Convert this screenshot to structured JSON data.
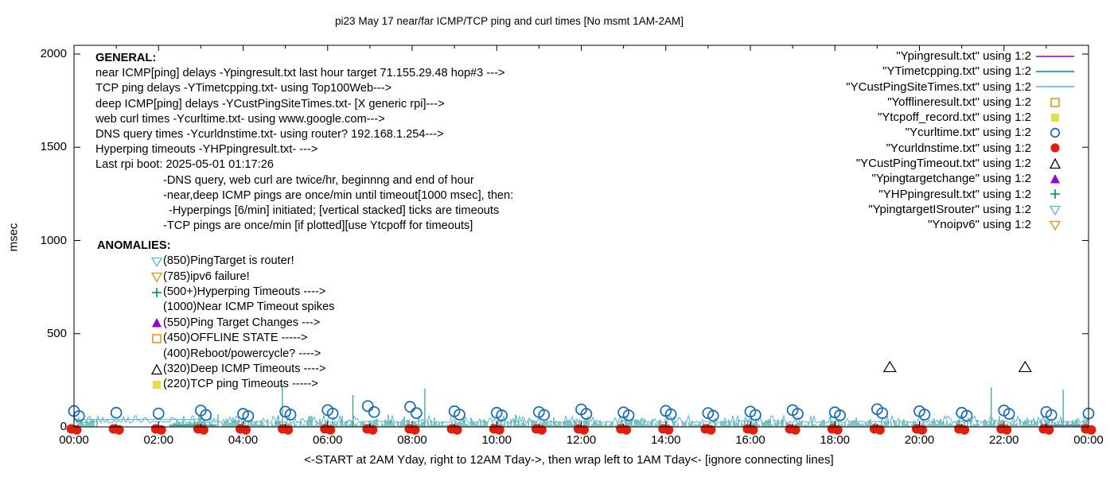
{
  "chart": {
    "title": "pi23 May 17  near/far ICMP/TCP ping and curl times [No msmt 1AM-2AM]",
    "ylabel": "msec",
    "xlabel": "<-START at 2AM Yday, right to 12AM Tday->, then wrap left to 1AM Tday<- [ignore connecting lines]"
  },
  "colors": {
    "purple": "#9400d3",
    "teal": "#008d74",
    "lightblue": "#5ab4e5",
    "orange": "#de920f",
    "yellow": "#e8de4a",
    "blue": "#1f6fb2",
    "red": "#df2010",
    "black": "#000000"
  },
  "general_info": {
    "heading": "GENERAL:",
    "lines": [
      {
        "t": "near ICMP[ping] delays -Ypingresult.txt last hour target 71.155.29.48 hop#3 --->",
        "i": 0
      },
      {
        "t": "TCP ping delays -YTimetcpping.txt- using Top100Web--->",
        "i": 0
      },
      {
        "t": "deep ICMP[ping] delays -YCustPingSiteTimes.txt- [X generic rpi]--->",
        "i": 0
      },
      {
        "t": "web curl times -Ycurltime.txt- using www.google.com--->",
        "i": 0
      },
      {
        "t": "DNS query times -Ycurldnstime.txt- using router? 192.168.1.254--->",
        "i": 0
      },
      {
        "t": "Hyperping timeouts -YHPpingresult.txt- --->",
        "i": 0
      },
      {
        "t": "Last rpi boot: 2025-05-01 01:17:26",
        "i": 0
      },
      {
        "t": "-DNS query, web curl are twice/hr, beginnng and end of hour",
        "i": 85
      },
      {
        "t": "-near,deep ICMP pings are once/min until timeout[1000 msec], then:",
        "i": 85
      },
      {
        "t": "-Hyperpings [6/min] initiated; [vertical stacked] ticks are timeouts",
        "i": 92
      },
      {
        "t": "-TCP pings are once/min [if plotted][use Ytcpoff for timeouts]",
        "i": 85
      }
    ]
  },
  "anomalies": {
    "heading": "ANOMALIES:",
    "items": [
      {
        "icon": "open-triangle-down",
        "color": "lightblue",
        "label": "(850)PingTarget is router!"
      },
      {
        "icon": "open-triangle-down",
        "color": "orange",
        "label": "(785)ipv6 failure!"
      },
      {
        "icon": "plus",
        "color": "teal",
        "label": "(500+)Hyperping Timeouts ---->"
      },
      {
        "icon": null,
        "color": null,
        "label": "(1000)Near ICMP Timeout spikes"
      },
      {
        "icon": "filled-triangle-up",
        "color": "purple",
        "label": "(550)Ping Target Changes --->"
      },
      {
        "icon": "open-square",
        "color": "orange",
        "label": "(450)OFFLINE STATE ----->"
      },
      {
        "icon": null,
        "color": null,
        "label": "(400)Reboot/powercycle? ---->"
      },
      {
        "icon": "open-triangle-up",
        "color": "black",
        "label": "(320)Deep ICMP Timeouts ---->"
      },
      {
        "icon": "filled-square",
        "color": "yellow",
        "label": "(220)TCP ping Timeouts ----->"
      }
    ]
  },
  "chart_data": {
    "type": "line",
    "title": "pi23 May 17  near/far ICMP/TCP ping and curl times [No msmt 1AM-2AM]",
    "xlabel": "<-START at 2AM Yday, right to 12AM Tday->, then wrap left to 1AM Tday<- [ignore connecting lines]",
    "ylabel": "msec",
    "legend_position": "top-right",
    "grid": false,
    "noise_seed": 20250517,
    "x_axis": {
      "unit": "time HH:MM",
      "hours_range": [
        0,
        24
      ],
      "ticks_major": [
        "00:00",
        "02:00",
        "04:00",
        "06:00",
        "08:00",
        "10:00",
        "12:00",
        "14:00",
        "16:00",
        "18:00",
        "20:00",
        "22:00",
        "00:00"
      ],
      "minor_tick_every_hours": 1
    },
    "y_axis": {
      "ticks": [
        0,
        500,
        1000,
        1500,
        2000
      ],
      "ylim": [
        0,
        2050
      ]
    },
    "series": [
      {
        "file": "\"Ypingresult.txt\" using 1:2",
        "marker": "line",
        "color_key": "purple",
        "role": "near ICMP[ping] delays, last hour",
        "segment": {
          "from_hour": 23,
          "to_hour": 24,
          "msec": 8
        }
      },
      {
        "file": "\"YTimetcpping.txt\" using 1:2",
        "marker": "line",
        "color_key": "teal",
        "role": "TCP ping delays: dense grass ticks rising from 0, approx 3-45 msec",
        "noise": {
          "min_msec": 3,
          "max_msec": 43,
          "tall_chance": 0.05,
          "tall_extra_max": 25,
          "gap_hours": [
            0.55,
            2.25
          ]
        },
        "flat_segment": {
          "from_hour": 2.25,
          "to_hour": 3.35,
          "msec": 9
        },
        "spikes": [
          [
            4.93,
            230
          ],
          [
            6.6,
            170
          ],
          [
            8.3,
            205
          ],
          [
            21.7,
            212
          ],
          [
            23.4,
            200
          ]
        ]
      },
      {
        "file": "\"YCustPingSiteTimes.txt\" using 1:2",
        "marker": "line",
        "color_key": "lightblue",
        "role": "deep ICMP[ping] delays: jagged band approx 20-62 msec across full day",
        "noise": {
          "base_min": 20,
          "base_max": 32,
          "peak_min": 30,
          "peak_max": 62,
          "peak_chance": 0.3
        },
        "flat_segment": {
          "from_hour": 0,
          "to_hour": 3.1,
          "msec": 40
        }
      },
      {
        "file": "\"Yofflineresult.txt\" using 1:2",
        "marker": "open-square",
        "color_key": "orange",
        "points": []
      },
      {
        "file": "\"Ytcpoff_record.txt\" using 1:2",
        "marker": "filled-square",
        "color_key": "yellow",
        "points": []
      },
      {
        "file": "\"Ycurltime.txt\" using 1:2",
        "marker": "open-circle",
        "color_key": "blue",
        "role": "web curl times, twice per hour, approx 55-110 msec",
        "points": [
          [
            0,
            85
          ],
          [
            0.12,
            58
          ],
          [
            1,
            76
          ],
          [
            2,
            72
          ],
          [
            3,
            88
          ],
          [
            3.12,
            64
          ],
          [
            4,
            70
          ],
          [
            4.12,
            58
          ],
          [
            5,
            82
          ],
          [
            5.12,
            66
          ],
          [
            6,
            90
          ],
          [
            6.12,
            72
          ],
          [
            6.95,
            112
          ],
          [
            7.1,
            80
          ],
          [
            7.95,
            108
          ],
          [
            8.1,
            74
          ],
          [
            9,
            84
          ],
          [
            9.12,
            66
          ],
          [
            10,
            76
          ],
          [
            10.12,
            62
          ],
          [
            11,
            80
          ],
          [
            11.12,
            64
          ],
          [
            12,
            94
          ],
          [
            12.12,
            70
          ],
          [
            13,
            78
          ],
          [
            13.12,
            62
          ],
          [
            14,
            86
          ],
          [
            14.12,
            68
          ],
          [
            15,
            74
          ],
          [
            15.12,
            60
          ],
          [
            16,
            82
          ],
          [
            16.12,
            64
          ],
          [
            17,
            90
          ],
          [
            17.12,
            70
          ],
          [
            18,
            78
          ],
          [
            18.12,
            62
          ],
          [
            19,
            95
          ],
          [
            19.12,
            74
          ],
          [
            20,
            84
          ],
          [
            20.12,
            66
          ],
          [
            21,
            76
          ],
          [
            21.12,
            60
          ],
          [
            22,
            88
          ],
          [
            22.12,
            70
          ],
          [
            23,
            80
          ],
          [
            23.12,
            64
          ],
          [
            24,
            72
          ]
        ]
      },
      {
        "file": "\"Ycurldnstime.txt\" using 1:2",
        "marker": "filled-circle",
        "color_key": "red",
        "role": "DNS query times: hourly clusters at/near 0 msec",
        "points": [
          [
            0,
            2
          ],
          [
            1,
            2
          ],
          [
            2,
            2
          ],
          [
            3,
            2
          ],
          [
            4,
            2
          ],
          [
            5,
            2
          ],
          [
            6,
            2
          ],
          [
            7,
            2
          ],
          [
            8,
            2
          ],
          [
            9,
            2
          ],
          [
            10,
            2
          ],
          [
            11,
            2
          ],
          [
            12,
            2
          ],
          [
            13,
            2
          ],
          [
            14,
            2
          ],
          [
            15,
            2
          ],
          [
            16,
            2
          ],
          [
            17,
            2
          ],
          [
            18,
            2
          ],
          [
            19,
            2
          ],
          [
            20,
            2
          ],
          [
            21,
            2
          ],
          [
            22,
            2
          ],
          [
            23,
            2
          ],
          [
            24,
            2
          ]
        ]
      },
      {
        "file": "\"YCustPingTimeout.txt\" using 1:2",
        "marker": "open-triangle-up",
        "color_key": "black",
        "role": "deep ICMP timeouts plotted at 320 msec",
        "points": [
          [
            19.3,
            320
          ],
          [
            22.5,
            320
          ]
        ]
      },
      {
        "file": "\"Ypingtargetchange\" using 1:2",
        "marker": "filled-triangle-up",
        "color_key": "purple",
        "points": []
      },
      {
        "file": "\"YHPpingresult.txt\" using 1:2",
        "marker": "plus",
        "color_key": "teal",
        "points": []
      },
      {
        "file": "\"YpingtargetISrouter\" using 1:2",
        "marker": "open-triangle-down",
        "color_key": "lightblue",
        "points": []
      },
      {
        "file": "\"Ynoipv6\" using 1:2",
        "marker": "open-triangle-down",
        "color_key": "orange",
        "points": []
      }
    ]
  }
}
